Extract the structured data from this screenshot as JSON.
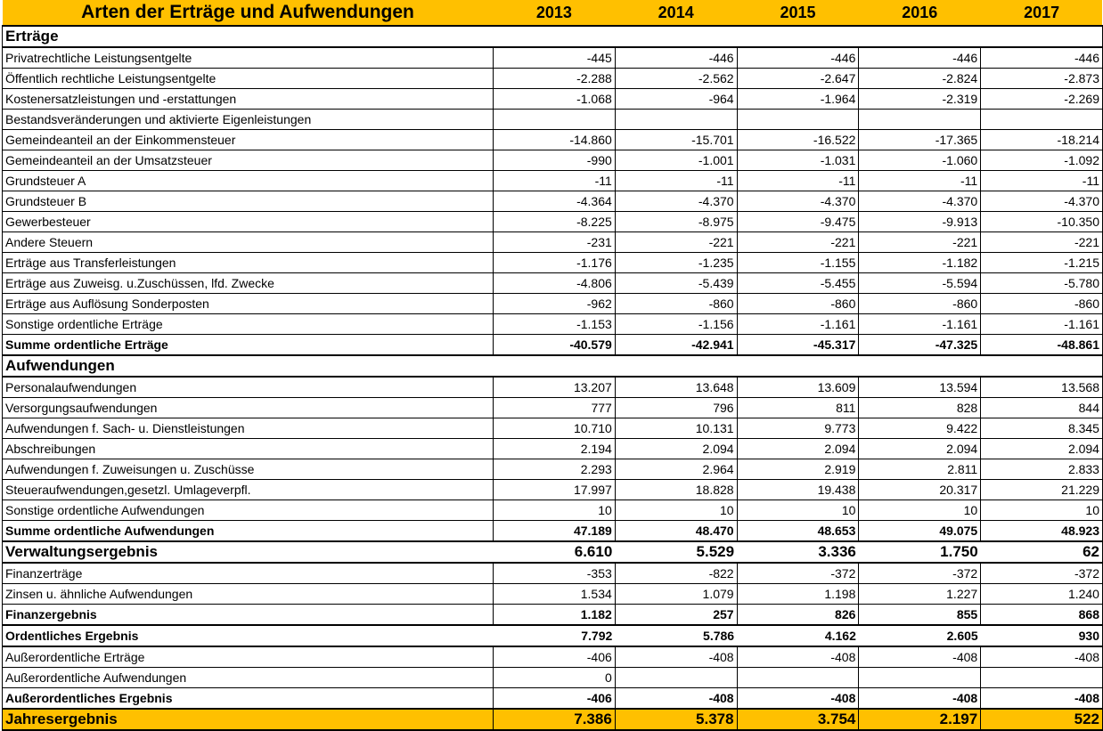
{
  "title": "Arten der Erträge und Aufwendungen",
  "years": [
    "2013",
    "2014",
    "2015",
    "2016",
    "2017"
  ],
  "fill_color": "#ffc000",
  "rows": [
    {
      "type": "section",
      "label": "Erträge",
      "values": [
        "",
        "",
        "",
        "",
        ""
      ]
    },
    {
      "type": "item",
      "label": "Privatrechtliche Leistungsentgelte",
      "values": [
        "-445",
        "-446",
        "-446",
        "-446",
        "-446"
      ]
    },
    {
      "type": "item",
      "label": "Öffentlich rechtliche Leistungsentgelte",
      "values": [
        "-2.288",
        "-2.562",
        "-2.647",
        "-2.824",
        "-2.873"
      ]
    },
    {
      "type": "item",
      "label": "Kostenersatzleistungen und -erstattungen",
      "values": [
        "-1.068",
        "-964",
        "-1.964",
        "-2.319",
        "-2.269"
      ]
    },
    {
      "type": "item",
      "label": "Bestandsveränderungen und aktivierte Eigenleistungen",
      "values": [
        "",
        "",
        "",
        "",
        ""
      ]
    },
    {
      "type": "item",
      "label": "Gemeindeanteil an der Einkommensteuer",
      "values": [
        "-14.860",
        "-15.701",
        "-16.522",
        "-17.365",
        "-18.214"
      ]
    },
    {
      "type": "item",
      "label": "Gemeindeanteil an der Umsatzsteuer",
      "values": [
        "-990",
        "-1.001",
        "-1.031",
        "-1.060",
        "-1.092"
      ]
    },
    {
      "type": "item",
      "label": "Grundsteuer A",
      "values": [
        "-11",
        "-11",
        "-11",
        "-11",
        "-11"
      ]
    },
    {
      "type": "item",
      "label": "Grundsteuer B",
      "values": [
        "-4.364",
        "-4.370",
        "-4.370",
        "-4.370",
        "-4.370"
      ]
    },
    {
      "type": "item",
      "label": "Gewerbesteuer",
      "values": [
        "-8.225",
        "-8.975",
        "-9.475",
        "-9.913",
        "-10.350"
      ]
    },
    {
      "type": "item",
      "label": "Andere Steuern",
      "values": [
        "-231",
        "-221",
        "-221",
        "-221",
        "-221"
      ]
    },
    {
      "type": "item",
      "label": "Erträge aus Transferleistungen",
      "values": [
        "-1.176",
        "-1.235",
        "-1.155",
        "-1.182",
        "-1.215"
      ]
    },
    {
      "type": "item",
      "label": "Erträge aus Zuweisg. u.Zuschüssen, lfd. Zwecke",
      "values": [
        "-4.806",
        "-5.439",
        "-5.455",
        "-5.594",
        "-5.780"
      ]
    },
    {
      "type": "item",
      "label": "Erträge aus Auflösung Sonderposten",
      "values": [
        "-962",
        "-860",
        "-860",
        "-860",
        "-860"
      ]
    },
    {
      "type": "item",
      "label": "Sonstige ordentliche Erträge",
      "values": [
        "-1.153",
        "-1.156",
        "-1.161",
        "-1.161",
        "-1.161"
      ]
    },
    {
      "type": "sum",
      "label": "Summe ordentliche Erträge",
      "values": [
        "-40.579",
        "-42.941",
        "-45.317",
        "-47.325",
        "-48.861"
      ]
    },
    {
      "type": "section",
      "label": "Aufwendungen",
      "values": [
        "",
        "",
        "",
        "",
        ""
      ]
    },
    {
      "type": "item",
      "label": "Personalaufwendungen",
      "values": [
        "13.207",
        "13.648",
        "13.609",
        "13.594",
        "13.568"
      ]
    },
    {
      "type": "item",
      "label": "Versorgungsaufwendungen",
      "values": [
        "777",
        "796",
        "811",
        "828",
        "844"
      ]
    },
    {
      "type": "item",
      "label": "Aufwendungen f. Sach- u. Dienstleistungen",
      "values": [
        "10.710",
        "10.131",
        "9.773",
        "9.422",
        "8.345"
      ]
    },
    {
      "type": "item",
      "label": "Abschreibungen",
      "values": [
        "2.194",
        "2.094",
        "2.094",
        "2.094",
        "2.094"
      ]
    },
    {
      "type": "item",
      "label": "Aufwendungen f. Zuweisungen u. Zuschüsse",
      "values": [
        "2.293",
        "2.964",
        "2.919",
        "2.811",
        "2.833"
      ]
    },
    {
      "type": "item",
      "label": "Steueraufwendungen,gesetzl. Umlageverpfl.",
      "values": [
        "17.997",
        "18.828",
        "19.438",
        "20.317",
        "21.229"
      ]
    },
    {
      "type": "item",
      "label": "Sonstige ordentliche Aufwendungen",
      "values": [
        "10",
        "10",
        "10",
        "10",
        "10"
      ]
    },
    {
      "type": "sum",
      "label": "Summe ordentliche Aufwendungen",
      "values": [
        "47.189",
        "48.470",
        "48.653",
        "49.075",
        "48.923"
      ]
    },
    {
      "type": "result",
      "label": "Verwaltungsergebnis",
      "values": [
        "6.610",
        "5.529",
        "3.336",
        "1.750",
        "62"
      ]
    },
    {
      "type": "item",
      "label": "Finanzerträge",
      "values": [
        "-353",
        "-822",
        "-372",
        "-372",
        "-372"
      ]
    },
    {
      "type": "item",
      "label": "Zinsen u. ähnliche Aufwendungen",
      "values": [
        "1.534",
        "1.079",
        "1.198",
        "1.227",
        "1.240"
      ]
    },
    {
      "type": "sum",
      "label": "Finanzergebnis",
      "values": [
        "1.182",
        "257",
        "826",
        "855",
        "868"
      ]
    },
    {
      "type": "result-small",
      "label": "Ordentliches Ergebnis",
      "values": [
        "7.792",
        "5.786",
        "4.162",
        "2.605",
        "930"
      ]
    },
    {
      "type": "item",
      "label": "Außerordentliche Erträge",
      "values": [
        "-406",
        "-408",
        "-408",
        "-408",
        "-408"
      ]
    },
    {
      "type": "item",
      "label": "Außerordentliche Aufwendungen",
      "values": [
        "0",
        "",
        "",
        "",
        ""
      ]
    },
    {
      "type": "sum",
      "label": "Außerordentliches Ergebnis",
      "values": [
        "-406",
        "-408",
        "-408",
        "-408",
        "-408"
      ]
    },
    {
      "type": "total",
      "label": "Jahresergebnis",
      "values": [
        "7.386",
        "5.378",
        "3.754",
        "2.197",
        "522"
      ]
    }
  ]
}
